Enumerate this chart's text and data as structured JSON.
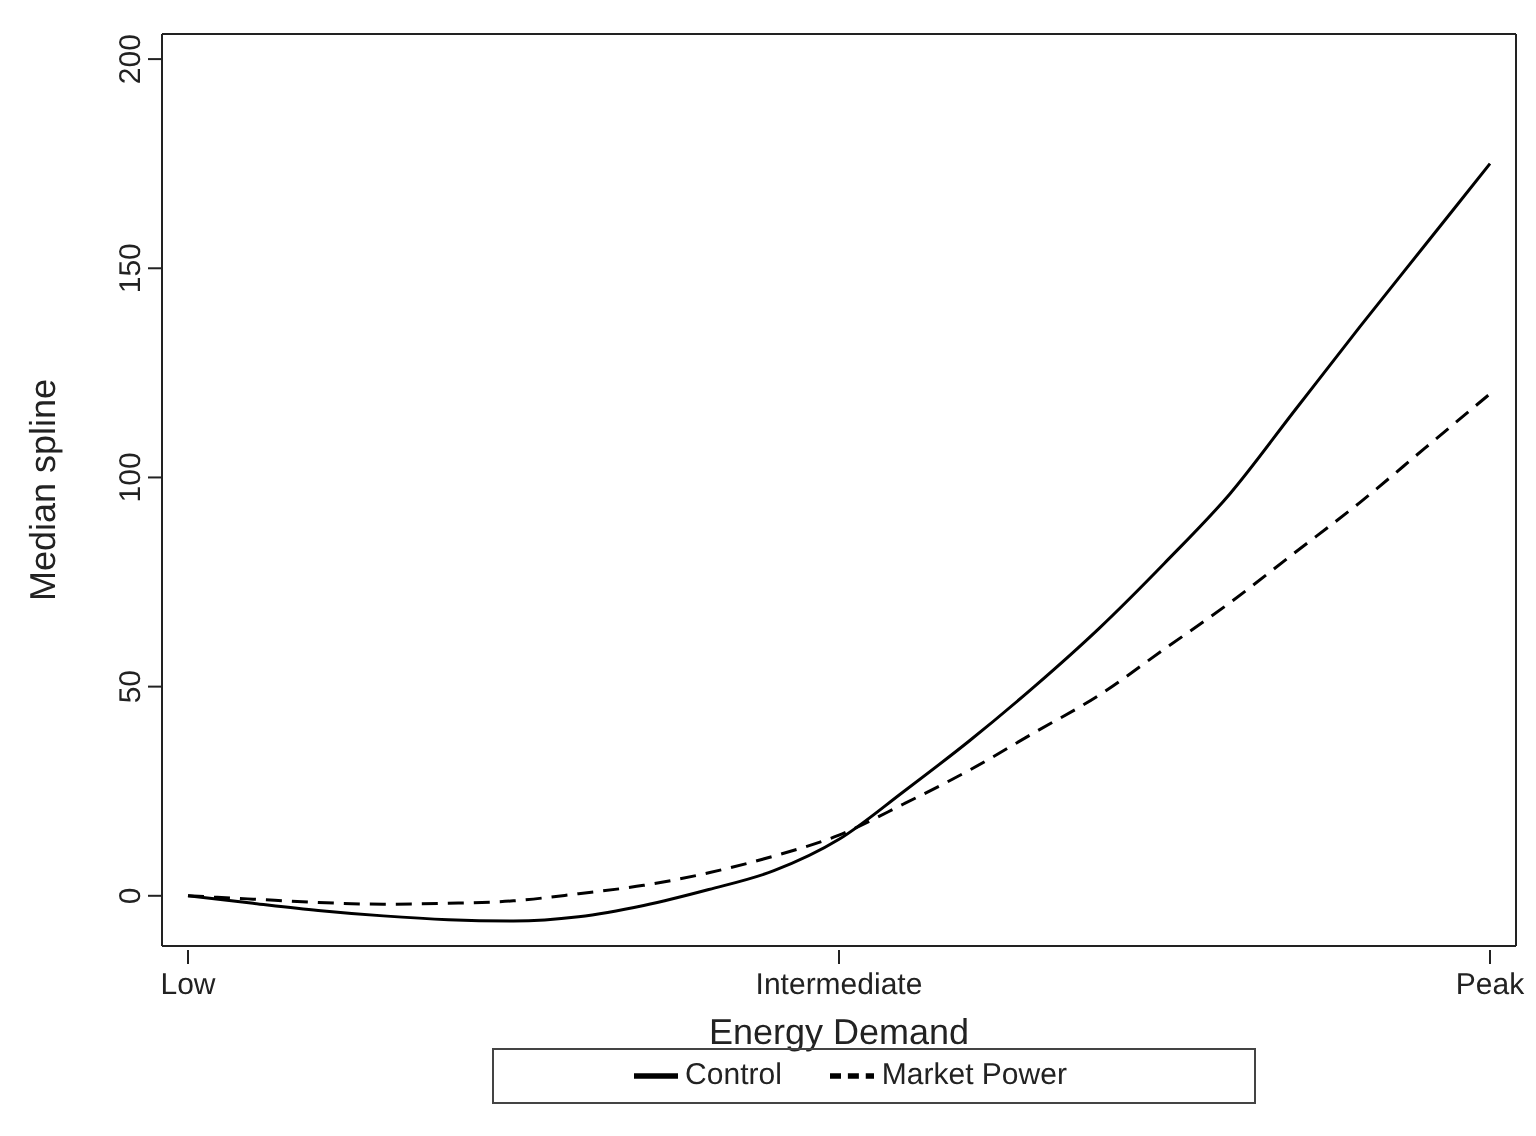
{
  "chart_data": {
    "type": "line",
    "xlabel": "Energy Demand",
    "ylabel": "Median spline",
    "categories": [
      "Low",
      null,
      null,
      null,
      null,
      null,
      null,
      null,
      null,
      null,
      "Intermediate",
      null,
      null,
      null,
      null,
      null,
      null,
      null,
      null,
      null,
      "Peak"
    ],
    "ylim": [
      -12,
      206
    ],
    "yticks": [
      0,
      50,
      100,
      150,
      200
    ],
    "legend": "bottom",
    "marker": "none",
    "series": [
      {
        "name": "Control",
        "color": "#000000",
        "line_style": "solid",
        "values": [
          0,
          -1.8,
          -3.5,
          -4.8,
          -5.7,
          -6,
          -5,
          -2.3,
          1.5,
          6,
          13.5,
          25,
          37,
          50,
          64,
          79.5,
          96,
          116,
          136,
          155.5,
          175
        ]
      },
      {
        "name": "Market Power",
        "color": "#000000",
        "line_style": "dashed",
        "values": [
          0,
          -0.8,
          -1.6,
          -2,
          -1.8,
          -1.2,
          0.5,
          2.5,
          5.5,
          9.5,
          14.5,
          22,
          30,
          39,
          48,
          59,
          70,
          82,
          94,
          107,
          120
        ]
      }
    ]
  }
}
